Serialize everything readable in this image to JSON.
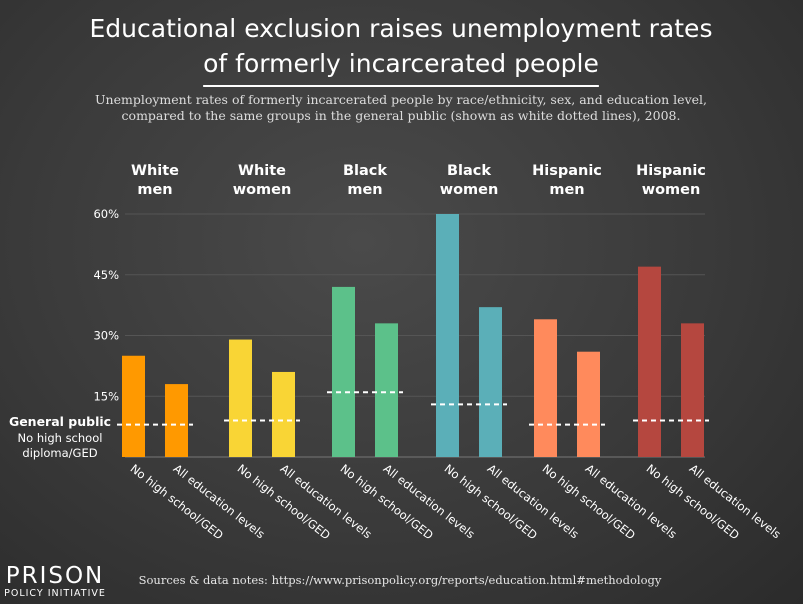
{
  "chart_data": {
    "type": "bar",
    "title": "Educational exclusion raises unemployment rates of formerly incarcerated people",
    "title_lines": [
      "Educational exclusion raises unemployment rates",
      "of formerly incarcerated people"
    ],
    "subtitle": "Unemployment rates of formerly incarcerated people by race/ethnicity, sex, and education level, compared to the same groups in the general public (shown as white dotted lines), 2008.",
    "subtitle_lines": [
      "Unemployment rates of formerly incarcerated people by race/ethnicity, sex, and education level,",
      "compared to the same groups in the general public (shown as white dotted lines), 2008."
    ],
    "ylim": [
      0,
      60
    ],
    "yticks": [
      "15%",
      "30%",
      "45%",
      "60%"
    ],
    "ytick_values": [
      15,
      30,
      45,
      60
    ],
    "gridlines": true,
    "bar_labels": [
      "No high school/GED",
      "All education levels"
    ],
    "groups": [
      {
        "name_lines": [
          "White",
          "men"
        ],
        "color": "#ff9900",
        "values": [
          25,
          18
        ],
        "general_public": 8
      },
      {
        "name_lines": [
          "White",
          "women"
        ],
        "color": "#f9d535",
        "values": [
          29,
          21
        ],
        "general_public": 9
      },
      {
        "name_lines": [
          "Black",
          "men"
        ],
        "color": "#5cc18a",
        "values": [
          42,
          33
        ],
        "general_public": 16
      },
      {
        "name_lines": [
          "Black",
          "women"
        ],
        "color": "#5bafb8",
        "values": [
          60,
          37
        ],
        "general_public": 13
      },
      {
        "name_lines": [
          "Hispanic",
          "men"
        ],
        "color": "#ff8a5c",
        "values": [
          34,
          26
        ],
        "general_public": 8
      },
      {
        "name_lines": [
          "Hispanic",
          "women"
        ],
        "color": "#b5473f",
        "values": [
          47,
          33
        ],
        "general_public": 9
      }
    ],
    "legend": {
      "title": "General public",
      "lines": [
        "No high school",
        "diploma/GED"
      ]
    }
  },
  "source_note": "Sources & data notes: https://www.prisonpolicy.org/reports/education.html#methodology",
  "logo": {
    "main": "PRISON",
    "sub": "POLICY INITIATIVE"
  },
  "colors": {
    "grid": "#555555",
    "axis": "#777777",
    "dash": "#ffffff",
    "title_underline": "#ffffff"
  }
}
